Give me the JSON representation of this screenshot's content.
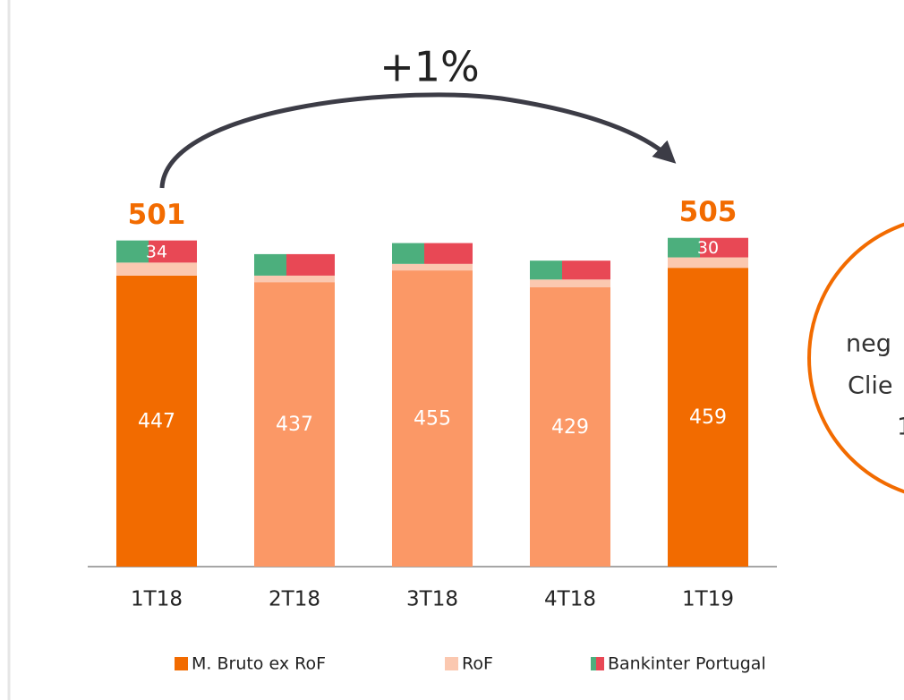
{
  "chart_data": {
    "type": "stacked_bar",
    "title": "+1%",
    "categories": [
      "1T18",
      "2T18",
      "3T18",
      "4T18",
      "1T19"
    ],
    "series": [
      {
        "name": "M. Bruto ex RoF",
        "color": "#f26b00",
        "colors": [
          "#f26b00",
          "#fb9866",
          "#fb9866",
          "#fb9866",
          "#f26b00"
        ],
        "values": [
          447,
          437,
          455,
          429,
          459
        ],
        "show_labels": [
          true,
          true,
          true,
          true,
          true
        ]
      },
      {
        "name": "RoF",
        "color": "#fbc8b0",
        "values": [
          20,
          10,
          10,
          12,
          16
        ],
        "show_labels": [
          false,
          false,
          false,
          false,
          false
        ]
      },
      {
        "name": "Bankinter Portugal",
        "color": [
          "#4caf7d",
          "#e84855"
        ],
        "values": [
          34,
          33,
          32,
          29,
          30
        ],
        "show_labels": [
          true,
          false,
          false,
          false,
          true
        ]
      }
    ],
    "totals": [
      501,
      null,
      null,
      null,
      505
    ],
    "ylim": [
      0,
      550
    ],
    "side_note": [
      "neg",
      "Clie",
      "1"
    ]
  }
}
